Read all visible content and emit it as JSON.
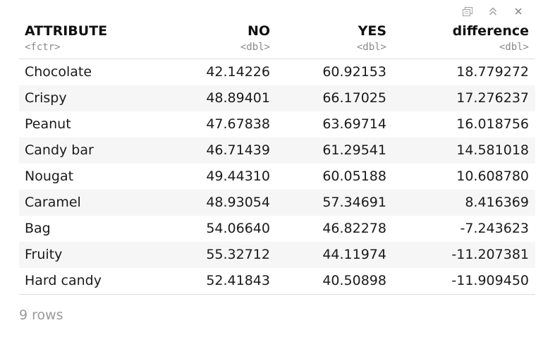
{
  "toolbar": {
    "icons": [
      "copy-icon",
      "collapse-icon",
      "close-icon"
    ]
  },
  "table": {
    "columns": [
      {
        "name": "ATTRIBUTE",
        "type": "<fctr>"
      },
      {
        "name": "NO",
        "type": "<dbl>"
      },
      {
        "name": "YES",
        "type": "<dbl>"
      },
      {
        "name": "difference",
        "type": "<dbl>"
      }
    ],
    "rows": [
      [
        "Chocolate",
        "42.14226",
        "60.92153",
        "18.779272"
      ],
      [
        "Crispy",
        "48.89401",
        "66.17025",
        "17.276237"
      ],
      [
        "Peanut",
        "47.67838",
        "63.69714",
        "16.018756"
      ],
      [
        "Candy bar",
        "46.71439",
        "61.29541",
        "14.581018"
      ],
      [
        "Nougat",
        "49.44310",
        "60.05188",
        "10.608780"
      ],
      [
        "Caramel",
        "48.93054",
        "57.34691",
        "8.416369"
      ],
      [
        "Bag",
        "54.06640",
        "46.82278",
        "-7.243623"
      ],
      [
        "Fruity",
        "55.32712",
        "44.11974",
        "-11.207381"
      ],
      [
        "Hard candy",
        "52.41843",
        "40.50898",
        "-11.909450"
      ]
    ]
  },
  "footer": {
    "row_count": "9 rows"
  },
  "colors": {
    "stripe": "#f6f6f6",
    "rule": "#dcdcdc",
    "muted": "#8a8a8a"
  }
}
